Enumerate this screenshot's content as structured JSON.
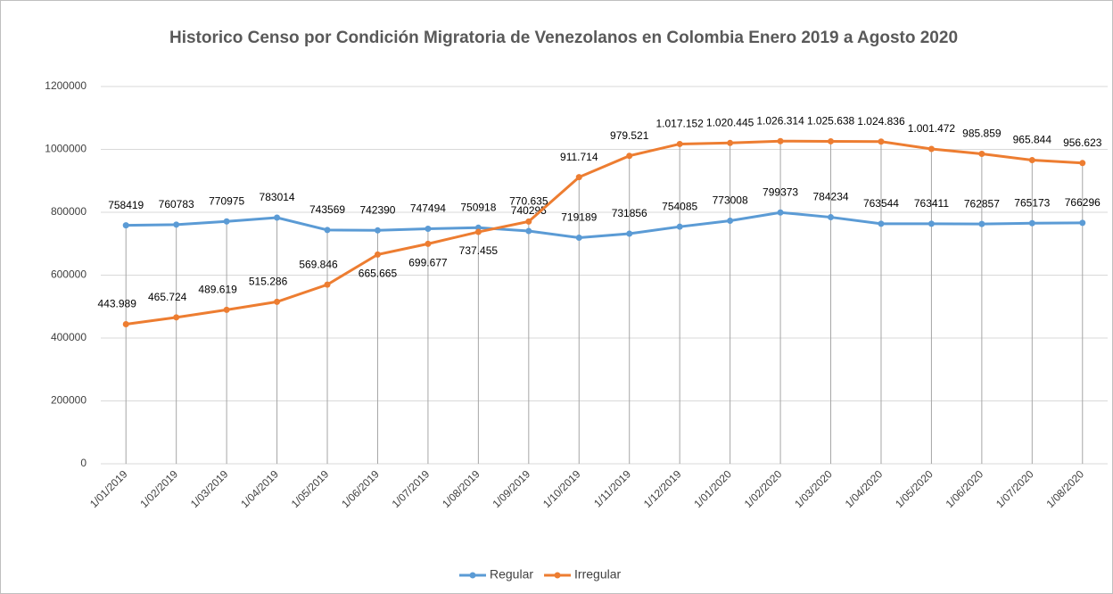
{
  "chart_data": {
    "type": "line",
    "title": "Historico Censo por Condición Migratoria de Venezolanos en Colombia Enero 2019 a Agosto 2020",
    "categories": [
      "1/01/2019",
      "1/02/2019",
      "1/03/2019",
      "1/04/2019",
      "1/05/2019",
      "1/06/2019",
      "1/07/2019",
      "1/08/2019",
      "1/09/2019",
      "1/10/2019",
      "1/11/2019",
      "1/12/2019",
      "1/01/2020",
      "1/02/2020",
      "1/03/2020",
      "1/04/2020",
      "1/05/2020",
      "1/06/2020",
      "1/07/2020",
      "1/08/2020"
    ],
    "series": [
      {
        "name": "Regular",
        "color": "#5b9bd5",
        "values": [
          758419,
          760783,
          770975,
          783014,
          743569,
          742390,
          747494,
          750918,
          740295,
          719189,
          731856,
          754085,
          773008,
          799373,
          784234,
          763544,
          763411,
          762857,
          765173,
          766296
        ]
      },
      {
        "name": "Irregular",
        "color": "#ed7d31",
        "values": [
          443989,
          465724,
          489619,
          515286,
          569846,
          665665,
          699677,
          737455,
          770635,
          911714,
          979521,
          1017152,
          1020445,
          1026314,
          1025638,
          1024836,
          1001472,
          985859,
          965844,
          956623
        ],
        "value_labels": [
          "443.989",
          "465.724",
          "489.619",
          "515.286",
          "569.846",
          "665.665",
          "699.677",
          "737.455",
          "770.635",
          "911.714",
          "979.521",
          "1.017.152",
          "1.020.445",
          "1.026.314",
          "1.025.638",
          "1.024.836",
          "1.001.472",
          "985.859",
          "965.844",
          "956.623"
        ]
      }
    ],
    "ylim": [
      0,
      1200000
    ],
    "yticks": [
      0,
      200000,
      400000,
      600000,
      800000,
      1000000,
      1200000
    ],
    "grid": true,
    "legend": "bottom"
  }
}
